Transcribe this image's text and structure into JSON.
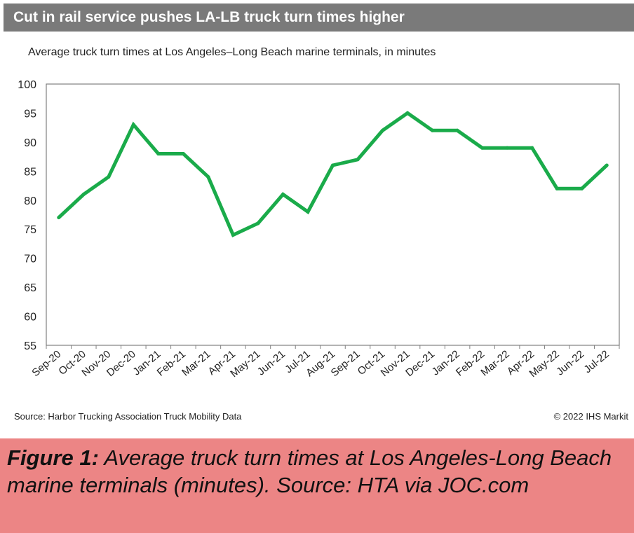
{
  "header": {
    "title": "Cut in rail service pushes LA-LB truck turn times higher"
  },
  "chart_data": {
    "type": "line",
    "subtitle": "Average truck turn times at Los Angeles–Long Beach marine terminals, in minutes",
    "categories": [
      "Sep-20",
      "Oct-20",
      "Nov-20",
      "Dec-20",
      "Jan-21",
      "Feb-21",
      "Mar-21",
      "Apr-21",
      "May-21",
      "Jun-21",
      "Jul-21",
      "Aug-21",
      "Sep-21",
      "Oct-21",
      "Nov-21",
      "Dec-21",
      "Jan-22",
      "Feb-22",
      "Mar-22",
      "Apr-22",
      "May-22",
      "Jun-22",
      "Jul-22"
    ],
    "values": [
      77,
      81,
      84,
      93,
      88,
      88,
      84,
      74,
      76,
      81,
      78,
      86,
      87,
      92,
      95,
      92,
      92,
      89,
      89,
      89,
      82,
      82,
      86
    ],
    "ylim": [
      55,
      100
    ],
    "yticks": [
      55,
      60,
      65,
      70,
      75,
      80,
      85,
      90,
      95,
      100
    ],
    "line_color": "#1aab4a",
    "grid": false,
    "legend": "none"
  },
  "footer": {
    "source": "Source: Harbor Trucking Association Truck Mobility Data",
    "copyright": "© 2022 IHS Markit"
  },
  "caption": {
    "label": "Figure 1:",
    "text": " Average truck turn times at Los Angeles-Long Beach marine terminals (minutes). Source: HTA via JOC.com",
    "background": "#ec8585"
  }
}
